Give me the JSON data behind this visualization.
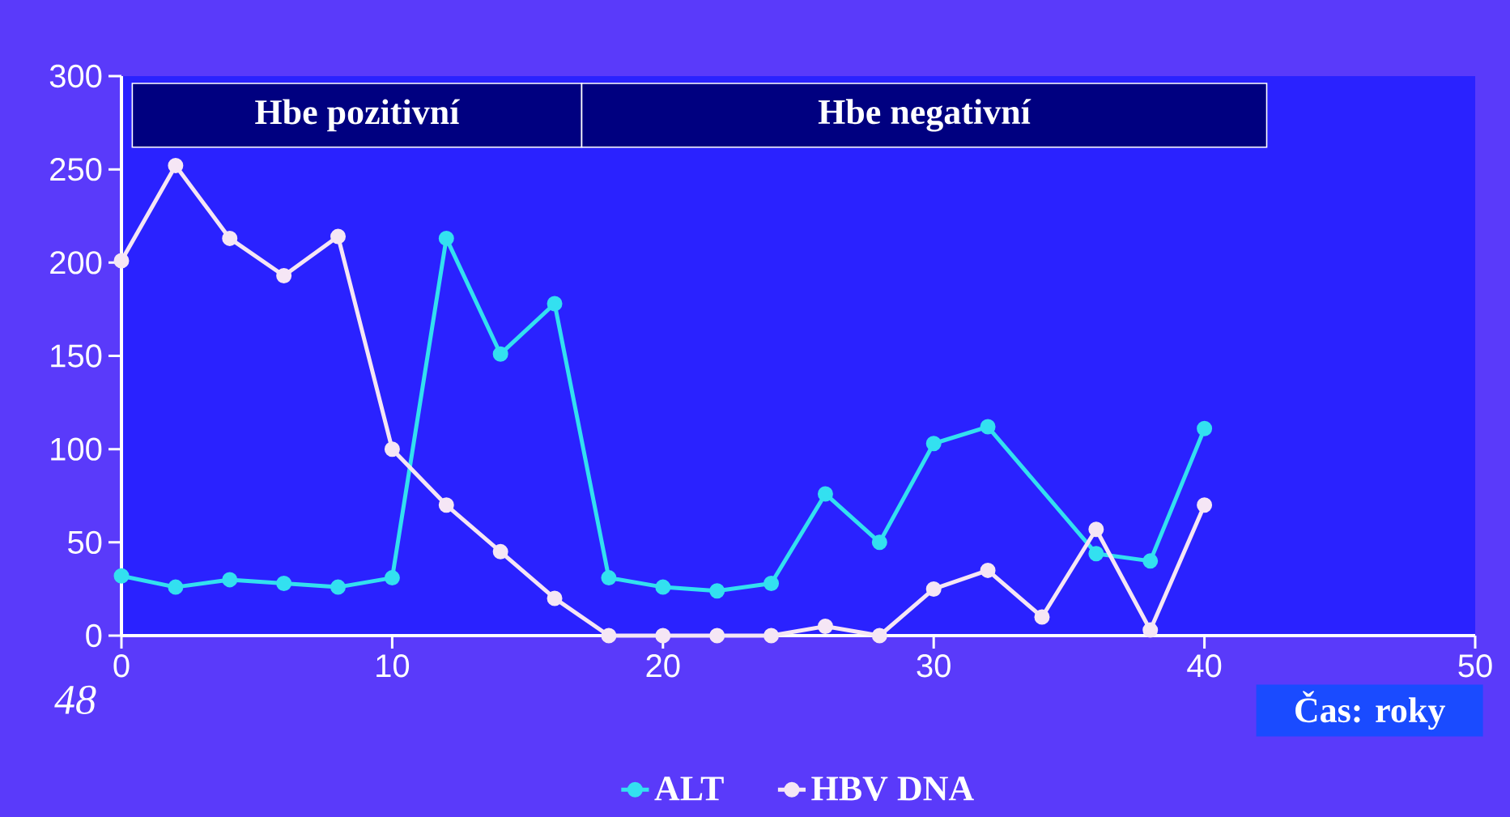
{
  "chart_data": {
    "type": "line",
    "xlabel": "Čas: roky",
    "annotations": [
      "48"
    ],
    "xlim": [
      0,
      50
    ],
    "xticks": [
      0,
      10,
      20,
      30,
      40,
      50
    ],
    "ylim": [
      0,
      300
    ],
    "yticks": [
      0,
      50,
      100,
      150,
      200,
      250,
      300
    ],
    "marker": "circle",
    "legend": "bottom",
    "grid": false,
    "bands": [
      {
        "axis": "x",
        "from": 0.4,
        "to": 17,
        "label": "Hbe pozitivní",
        "color": "#000080"
      },
      {
        "axis": "x",
        "from": 17,
        "to": 42.3,
        "label": "Hbe negativní",
        "color": "#000080"
      }
    ],
    "series": [
      {
        "name": "ALT",
        "color": "#33e0f0",
        "x": [
          0,
          2,
          4,
          6,
          8,
          10,
          12,
          14,
          16,
          18,
          20,
          22,
          24,
          26,
          28,
          30,
          32,
          36,
          38,
          40
        ],
        "values": [
          32,
          26,
          30,
          28,
          26,
          31,
          213,
          151,
          178,
          31,
          26,
          24,
          28,
          76,
          50,
          103,
          112,
          44,
          40,
          111
        ]
      },
      {
        "name": "HBV DNA",
        "color": "#f5e6f5",
        "x": [
          0,
          2,
          4,
          6,
          8,
          10,
          12,
          14,
          16,
          18,
          20,
          22,
          24,
          26,
          28,
          30,
          32,
          34,
          36,
          38,
          40
        ],
        "values": [
          201,
          252,
          213,
          193,
          214,
          100,
          70,
          45,
          20,
          0,
          0,
          0,
          0,
          5,
          0,
          25,
          35,
          10,
          57,
          3,
          70
        ]
      }
    ]
  }
}
